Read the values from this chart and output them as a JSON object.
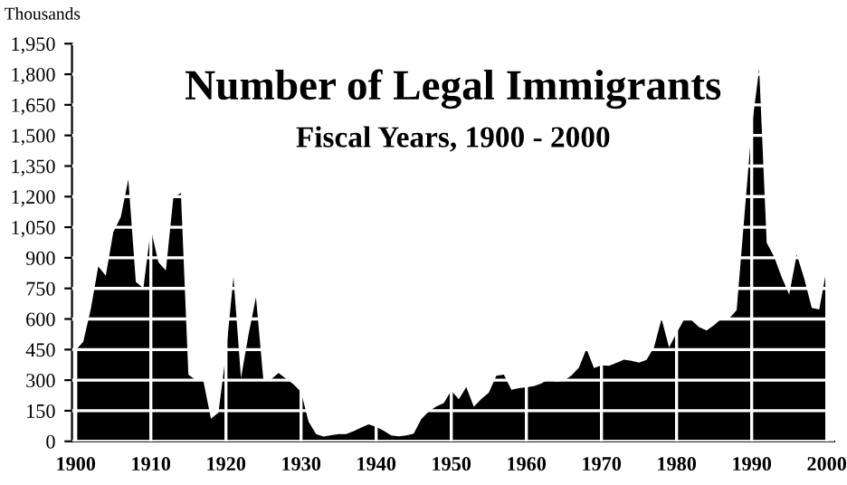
{
  "chart_data": {
    "type": "area",
    "title": "Number of Legal Immigrants",
    "subtitle": "Fiscal Years, 1900 - 2000",
    "ylabel": "Thousands",
    "x": [
      1900,
      1901,
      1902,
      1903,
      1904,
      1905,
      1906,
      1907,
      1908,
      1909,
      1910,
      1911,
      1912,
      1913,
      1914,
      1915,
      1916,
      1917,
      1918,
      1919,
      1920,
      1921,
      1922,
      1923,
      1924,
      1925,
      1926,
      1927,
      1928,
      1929,
      1930,
      1931,
      1932,
      1933,
      1934,
      1935,
      1936,
      1937,
      1938,
      1939,
      1940,
      1941,
      1942,
      1943,
      1944,
      1945,
      1946,
      1947,
      1948,
      1949,
      1950,
      1951,
      1952,
      1953,
      1954,
      1955,
      1956,
      1957,
      1958,
      1959,
      1960,
      1961,
      1962,
      1963,
      1964,
      1965,
      1966,
      1967,
      1968,
      1969,
      1970,
      1971,
      1972,
      1973,
      1974,
      1975,
      1976,
      1977,
      1978,
      1979,
      1980,
      1981,
      1982,
      1983,
      1984,
      1985,
      1986,
      1987,
      1988,
      1989,
      1990,
      1991,
      1992,
      1993,
      1994,
      1995,
      1996,
      1997,
      1998,
      1999,
      2000
    ],
    "series": [
      {
        "color": "#000000",
        "values": [
          448,
          488,
          648,
          857,
          812,
          1026,
          1100,
          1285,
          782,
          751,
          1041,
          878,
          838,
          1197,
          1218,
          327,
          299,
          295,
          111,
          141,
          430,
          805,
          310,
          523,
          707,
          294,
          304,
          335,
          307,
          280,
          242,
          97,
          36,
          23,
          30,
          35,
          36,
          50,
          68,
          83,
          71,
          52,
          29,
          24,
          29,
          38,
          109,
          147,
          171,
          188,
          249,
          206,
          266,
          170,
          208,
          238,
          322,
          327,
          253,
          261,
          265,
          271,
          284,
          306,
          292,
          297,
          323,
          362,
          454,
          359,
          373,
          370,
          385,
          400,
          395,
          386,
          399,
          462,
          601,
          460,
          531,
          597,
          594,
          560,
          544,
          570,
          602,
          602,
          643,
          1091,
          1536,
          1827,
          974,
          904,
          804,
          720,
          916,
          798,
          654,
          647,
          850
        ]
      }
    ],
    "xlim": [
      1899.5,
      2001
    ],
    "ylim": [
      0,
      1950
    ],
    "xticks": [
      1900,
      1910,
      1920,
      1930,
      1940,
      1950,
      1960,
      1970,
      1980,
      1990,
      2000
    ],
    "yticks": [
      {
        "value": 0,
        "label": "0"
      },
      {
        "value": 150,
        "label": "150"
      },
      {
        "value": 300,
        "label": "300"
      },
      {
        "value": 450,
        "label": "450"
      },
      {
        "value": 600,
        "label": "600"
      },
      {
        "value": 750,
        "label": "750"
      },
      {
        "value": 900,
        "label": "900"
      },
      {
        "value": 1050,
        "label": "1,050"
      },
      {
        "value": 1200,
        "label": "1,200"
      },
      {
        "value": 1350,
        "label": "1,350"
      },
      {
        "value": 1500,
        "label": "1,500"
      },
      {
        "value": 1650,
        "label": "1,650"
      },
      {
        "value": 1800,
        "label": "1,800"
      },
      {
        "value": 1950,
        "label": "1,950"
      }
    ],
    "grid": true,
    "legend": false
  }
}
